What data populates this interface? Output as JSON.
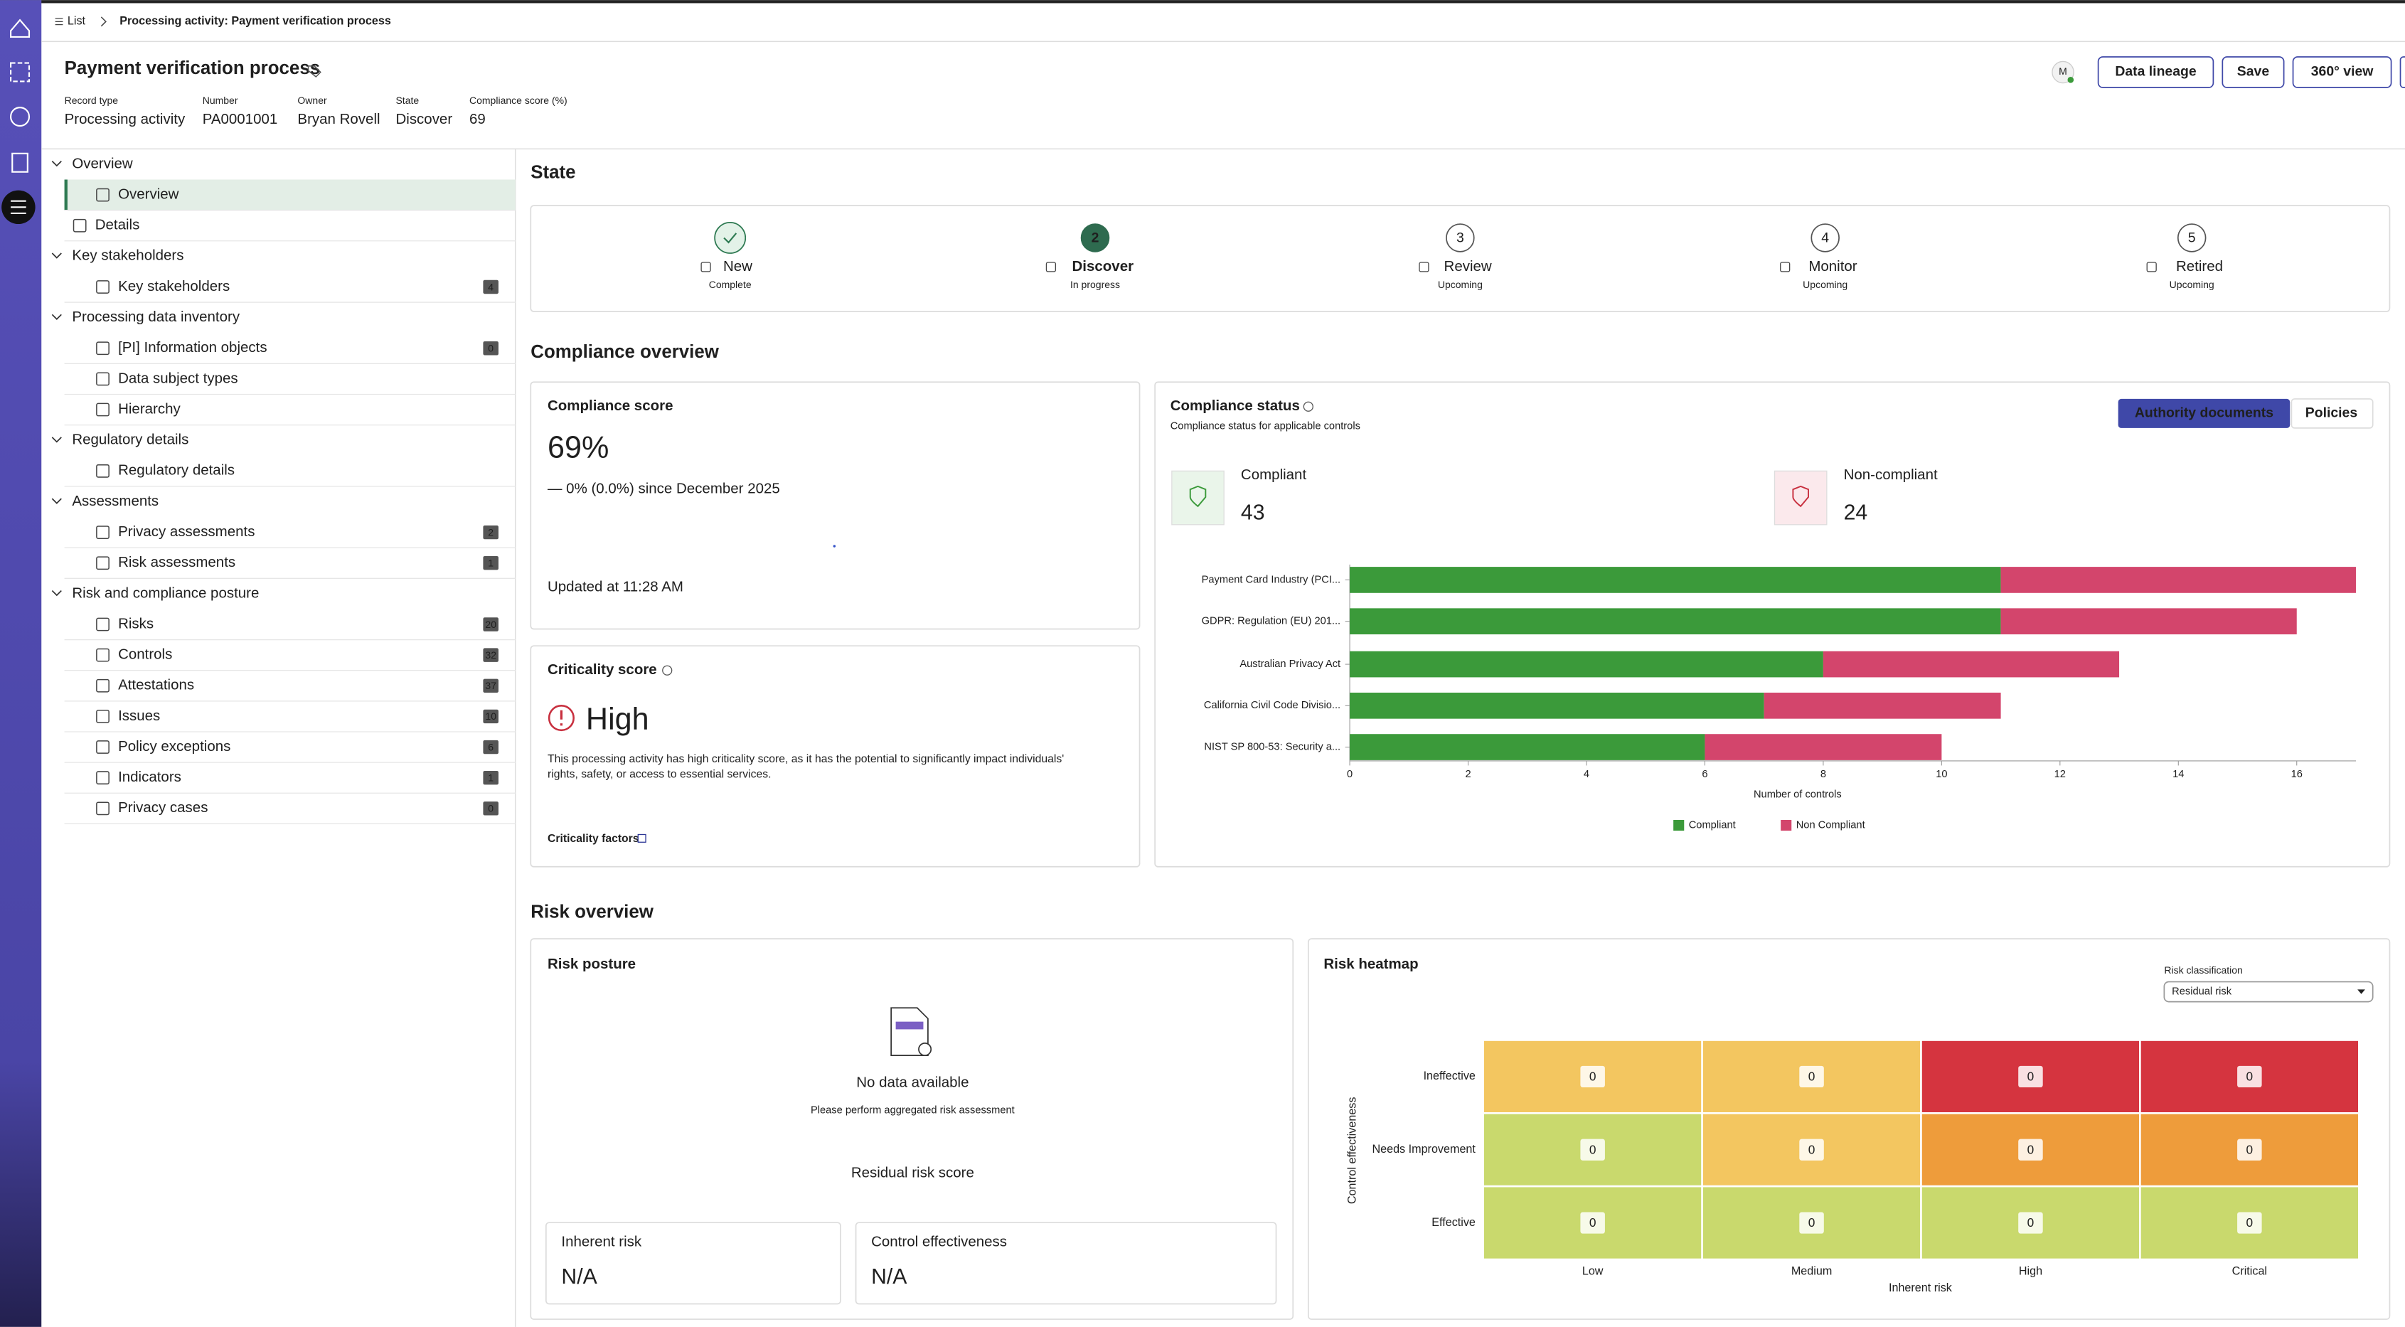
{
  "breadcrumb": {
    "list": "List",
    "current": "Processing activity: Payment verification process"
  },
  "header": {
    "title": "Payment verification process",
    "fields": [
      {
        "label": "Record type",
        "value": "Processing activity"
      },
      {
        "label": "Number",
        "value": "PA0001001"
      },
      {
        "label": "Owner",
        "value": "Bryan Rovell"
      },
      {
        "label": "State",
        "value": "Discover"
      },
      {
        "label": "Compliance score (%)",
        "value": "69"
      }
    ],
    "avatar": "M",
    "buttons": [
      "Data lineage",
      "Save",
      "360° view"
    ]
  },
  "sidebar": [
    {
      "label": "Overview",
      "items": [
        {
          "label": "Overview",
          "selected": true
        },
        {
          "label": "Details"
        }
      ]
    },
    {
      "label": "Key stakeholders",
      "items": [
        {
          "label": "Key stakeholders",
          "count": 4
        }
      ]
    },
    {
      "label": "Processing data inventory",
      "items": [
        {
          "label": "[PI] Information objects",
          "count": 0
        },
        {
          "label": "Data subject types"
        },
        {
          "label": "Hierarchy"
        }
      ]
    },
    {
      "label": "Regulatory details",
      "items": [
        {
          "label": "Regulatory details"
        }
      ]
    },
    {
      "label": "Assessments",
      "items": [
        {
          "label": "Privacy assessments",
          "count": 2
        },
        {
          "label": "Risk assessments",
          "count": 1
        }
      ]
    },
    {
      "label": "Risk and compliance posture",
      "items": [
        {
          "label": "Risks",
          "count": 20
        },
        {
          "label": "Controls",
          "count": 32
        },
        {
          "label": "Attestations",
          "count": 37
        },
        {
          "label": "Issues",
          "count": 10
        },
        {
          "label": "Policy exceptions",
          "count": 6
        },
        {
          "label": "Indicators",
          "count": 1
        },
        {
          "label": "Privacy cases",
          "count": 0
        }
      ]
    }
  ],
  "state": {
    "title": "State",
    "steps": [
      {
        "label": "New",
        "status": "Complete"
      },
      {
        "number": 2,
        "label": "Discover",
        "status": "In progress"
      },
      {
        "number": 3,
        "label": "Review",
        "status": "Upcoming"
      },
      {
        "number": 4,
        "label": "Monitor",
        "status": "Upcoming"
      },
      {
        "number": 5,
        "label": "Retired",
        "status": "Upcoming"
      }
    ]
  },
  "compliance_overview": {
    "title": "Compliance overview",
    "score_card": {
      "title": "Compliance score",
      "score": "69%",
      "change": "— 0% (0.0%) since December 2025",
      "updated": "Updated at 11:28 AM"
    },
    "criticality_card": {
      "title": "Criticality score",
      "level": "High",
      "description": [
        "This processing activity has high criticality score, as it has the potential to significantly impact individuals'",
        "rights, safety, or access to essential services."
      ],
      "link": "Criticality factors"
    },
    "status_card": {
      "title": "Compliance status",
      "subtitle": "Compliance status for applicable controls",
      "toggles": [
        "Authority documents",
        "Policies"
      ],
      "compliant": {
        "label": "Compliant",
        "value": 43
      },
      "non_compliant": {
        "label": "Non-compliant",
        "value": 24
      },
      "chart": {
        "type": "bar",
        "orientation": "horizontal",
        "stacked": true,
        "categories": [
          "Payment Card Industry (PCI...",
          "GDPR: Regulation (EU) 201...",
          "Australian Privacy Act",
          "California Civil Code Divisio...",
          "NIST SP 800-53: Security a..."
        ],
        "series": [
          {
            "name": "Compliant",
            "color": "#3b9a3a",
            "values": [
              11,
              11,
              8,
              7,
              6
            ]
          },
          {
            "name": "Non Compliant",
            "color": "#d3456c",
            "values": [
              6,
              5,
              5,
              4,
              4
            ]
          }
        ],
        "xlim": [
          0,
          17
        ],
        "xticks": [
          0,
          2,
          4,
          6,
          8,
          10,
          12,
          14,
          16
        ],
        "xlabel": "Number of controls"
      }
    }
  },
  "risk_overview": {
    "title": "Risk overview",
    "posture_card": {
      "title": "Risk posture",
      "empty_title": "No data available",
      "empty_text": "Please perform aggregated risk assessment",
      "score_title": "Residual risk score",
      "boxes": [
        {
          "label": "Inherent risk",
          "value": "N/A"
        },
        {
          "label": "Control effectiveness",
          "value": "N/A"
        }
      ]
    },
    "heatmap_card": {
      "title": "Risk heatmap",
      "classification_label": "Risk classification",
      "classification_value": "Residual risk",
      "rows": [
        "Ineffective",
        "Needs Improvement",
        "Effective"
      ],
      "columns": [
        "Low",
        "Medium",
        "High",
        "Critical"
      ],
      "values": [
        [
          0,
          0,
          0,
          0
        ],
        [
          0,
          0,
          0,
          0
        ],
        [
          0,
          0,
          0,
          0
        ]
      ],
      "colors": [
        [
          "#f3c660",
          "#f3c660",
          "#d5343f",
          "#d5343f"
        ],
        [
          "#c9d96d",
          "#f3c660",
          "#ee9c3b",
          "#ee9c3b"
        ],
        [
          "#c9d96d",
          "#c9d96d",
          "#c9d96d",
          "#c9d96d"
        ]
      ],
      "xlabel": "Inherent risk",
      "ylabel": "Control effectiveness"
    }
  }
}
